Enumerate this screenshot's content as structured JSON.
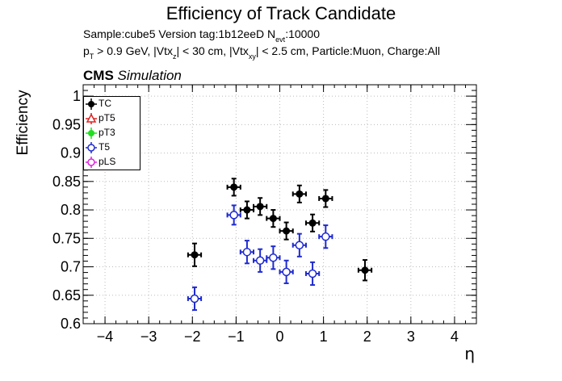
{
  "header": {
    "title": "Efficiency of Track Candidate",
    "sample_line": {
      "prefix": "Sample:cube5   Version tag:1b12eeD  N",
      "sub": "evt",
      "suffix": ":10000"
    },
    "cuts_line": {
      "p": "p",
      "p_sub": "T",
      "part1": " > 0.9 GeV, |Vtx",
      "z_sub": "z",
      "part2": "| < 30 cm, |Vtx",
      "xy_sub": "xy",
      "part3": "| < 2.5 cm, Particle:Muon, Charge:All"
    },
    "cms_label": "CMS",
    "sim_label": "Simulation"
  },
  "chart_data": {
    "type": "scatter",
    "xlabel": "η",
    "ylabel": "Efficiency",
    "xlim": [
      -4.5,
      4.5
    ],
    "ylim": [
      0.6,
      1.02
    ],
    "x_ticks": [
      -4,
      -3,
      -2,
      -1,
      0,
      1,
      2,
      3,
      4
    ],
    "x_tick_labels": [
      "−4",
      "−3",
      "−2",
      "−1",
      "0",
      "1",
      "2",
      "3",
      "4"
    ],
    "y_ticks": [
      0.6,
      0.65,
      0.7,
      0.75,
      0.8,
      0.85,
      0.9,
      0.95,
      1
    ],
    "y_tick_labels": [
      "0.6",
      "0.65",
      "0.7",
      "0.75",
      "0.8",
      "0.85",
      "0.9",
      "0.95",
      "1"
    ],
    "grid": true,
    "legend_position": "top-left",
    "series": [
      {
        "name": "TC",
        "color": "#000000",
        "marker": "filled-circle",
        "points": [
          {
            "x": -1.95,
            "y": 0.721,
            "xerr": 0.15,
            "yerr": 0.02
          },
          {
            "x": -1.05,
            "y": 0.84,
            "xerr": 0.15,
            "yerr": 0.015
          },
          {
            "x": -0.75,
            "y": 0.8,
            "xerr": 0.15,
            "yerr": 0.015
          },
          {
            "x": -0.45,
            "y": 0.806,
            "xerr": 0.15,
            "yerr": 0.015
          },
          {
            "x": -0.15,
            "y": 0.785,
            "xerr": 0.15,
            "yerr": 0.015
          },
          {
            "x": 0.15,
            "y": 0.763,
            "xerr": 0.15,
            "yerr": 0.015
          },
          {
            "x": 0.45,
            "y": 0.828,
            "xerr": 0.15,
            "yerr": 0.015
          },
          {
            "x": 0.75,
            "y": 0.777,
            "xerr": 0.15,
            "yerr": 0.015
          },
          {
            "x": 1.05,
            "y": 0.82,
            "xerr": 0.15,
            "yerr": 0.015
          },
          {
            "x": 1.95,
            "y": 0.694,
            "xerr": 0.15,
            "yerr": 0.018
          }
        ]
      },
      {
        "name": "pT5",
        "color": "#dd2222",
        "marker": "open-triangle",
        "points": []
      },
      {
        "name": "pT3",
        "color": "#22dd22",
        "marker": "filled-circle",
        "points": []
      },
      {
        "name": "T5",
        "color": "#1f2ad0",
        "marker": "open-circle",
        "points": [
          {
            "x": -1.95,
            "y": 0.644,
            "xerr": 0.15,
            "yerr": 0.02
          },
          {
            "x": -1.05,
            "y": 0.791,
            "xerr": 0.15,
            "yerr": 0.017
          },
          {
            "x": -0.75,
            "y": 0.726,
            "xerr": 0.15,
            "yerr": 0.02
          },
          {
            "x": -0.45,
            "y": 0.711,
            "xerr": 0.15,
            "yerr": 0.02
          },
          {
            "x": -0.15,
            "y": 0.716,
            "xerr": 0.15,
            "yerr": 0.02
          },
          {
            "x": 0.15,
            "y": 0.691,
            "xerr": 0.15,
            "yerr": 0.02
          },
          {
            "x": 0.45,
            "y": 0.738,
            "xerr": 0.15,
            "yerr": 0.02
          },
          {
            "x": 0.75,
            "y": 0.688,
            "xerr": 0.15,
            "yerr": 0.02
          },
          {
            "x": 1.05,
            "y": 0.753,
            "xerr": 0.15,
            "yerr": 0.02
          }
        ]
      },
      {
        "name": "pLS",
        "color": "#dd22dd",
        "marker": "open-circle",
        "points": []
      }
    ]
  }
}
